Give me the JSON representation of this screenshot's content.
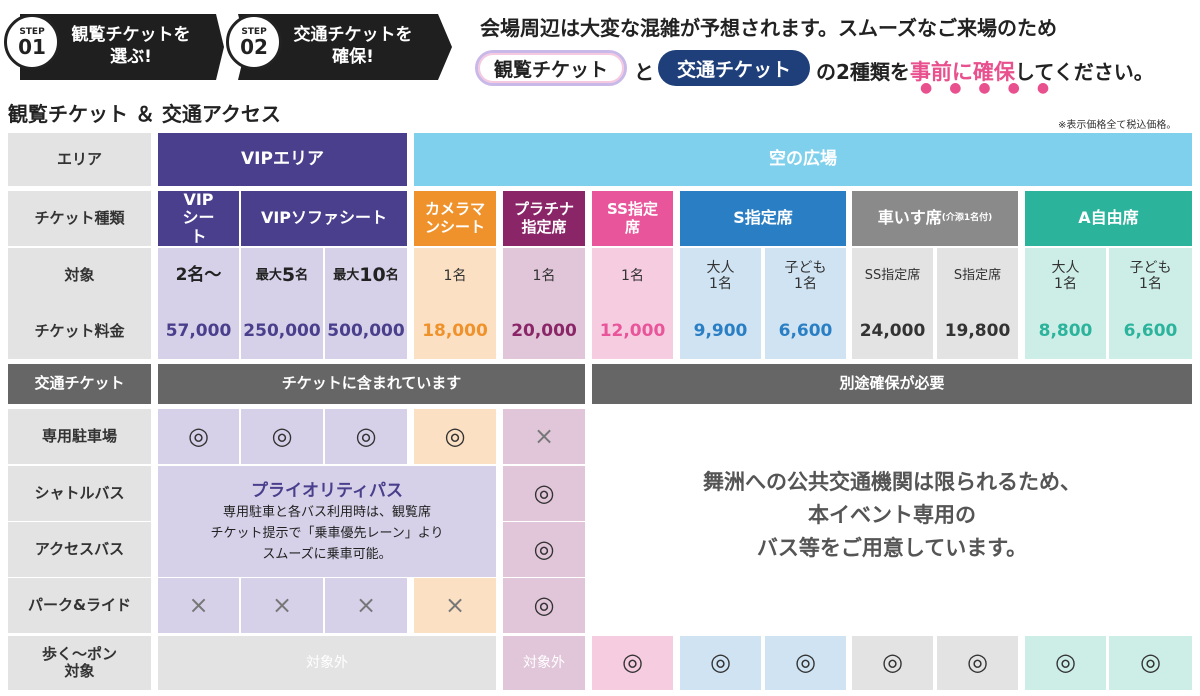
{
  "steps": [
    {
      "label": "STEP",
      "num": "01",
      "line1": "観覧チケットを",
      "line2": "選ぶ!"
    },
    {
      "label": "STEP",
      "num": "02",
      "line1": "交通チケットを",
      "line2": "確保!"
    }
  ],
  "notice": {
    "line1": "会場周辺は大変な混雑が予想されます。スムーズなご来場のため",
    "pill1": "観覧チケット",
    "and": "と",
    "pill2": "交通チケット",
    "mid": "の2種類を",
    "emph": "事前に確保",
    "tail": "してください。"
  },
  "section_title": "観覧チケット ＆ 交通アクセス",
  "tax_note": "※表示価格全て税込価格。",
  "rows": {
    "area": "エリア",
    "type": "チケット種類",
    "target": "対象",
    "price": "チケット料金",
    "transport": "交通チケット",
    "parking": "専用駐車場",
    "shuttle": "シャトルバス",
    "access": "アクセスバス",
    "park_ride": "パーク&ライド",
    "walk1": "歩く〜ポン",
    "walk2": "対象"
  },
  "areas": {
    "vip": "VIPエリア",
    "sky": "空の広場"
  },
  "types": {
    "vip_seat": "VIPシート",
    "vip_sofa": "VIPソファシート",
    "camera": "カメラマンシート",
    "platinum": "プラチナ指定席",
    "ss": "SS指定席",
    "s": "S指定席",
    "wheel": "車いす席",
    "wheel_note": "(介添1名付)",
    "a": "A自由席"
  },
  "targets": {
    "vip_seat": "2名〜",
    "sofa5_pre": "最大",
    "sofa5_num": "5",
    "sofa5_suf": "名",
    "sofa10_pre": "最大",
    "sofa10_num": "10",
    "sofa10_suf": "名",
    "camera": "1名",
    "platinum": "1名",
    "ss": "1名",
    "s_adult1": "大人",
    "s_adult2": "1名",
    "s_child1": "子ども",
    "s_child2": "1名",
    "w_ss": "SS指定席",
    "w_s": "S指定席",
    "a_adult1": "大人",
    "a_adult2": "1名",
    "a_child1": "子ども",
    "a_child2": "1名"
  },
  "prices": {
    "vip_seat": "57,000",
    "sofa5": "250,000",
    "sofa10": "500,000",
    "camera": "18,000",
    "platinum": "20,000",
    "ss": "12,000",
    "s_adult": "9,900",
    "s_child": "6,600",
    "w_ss": "24,000",
    "w_s": "19,800",
    "a_adult": "8,800",
    "a_child": "6,600"
  },
  "bands": {
    "included": "チケットに含まれています",
    "separate": "別途確保が必要"
  },
  "symbols": {
    "yes": "◎",
    "no": "×"
  },
  "priority": {
    "title": "プライオリティパス",
    "l1": "専用駐車と各バス利用時は、観覧席",
    "l2": "チケット提示で「乗車優先レーン」より",
    "l3": "スムーズに乗車可能。"
  },
  "public_msg": {
    "l1": "舞洲への公共交通機関は限られるため、",
    "l2": "本イベント専用の",
    "l3": "バス等をご用意しています。"
  },
  "not_applicable": "対象外",
  "colors": {
    "vip": "#4a3f8c",
    "sky": "#7fd0ec",
    "camera": "#f0922b",
    "platinum": "#8a2667",
    "ss": "#e8559a",
    "s": "#2a7fc4",
    "wheel": "#8a8a8a",
    "a": "#2cb39c",
    "navy": "#1e3f7a"
  }
}
